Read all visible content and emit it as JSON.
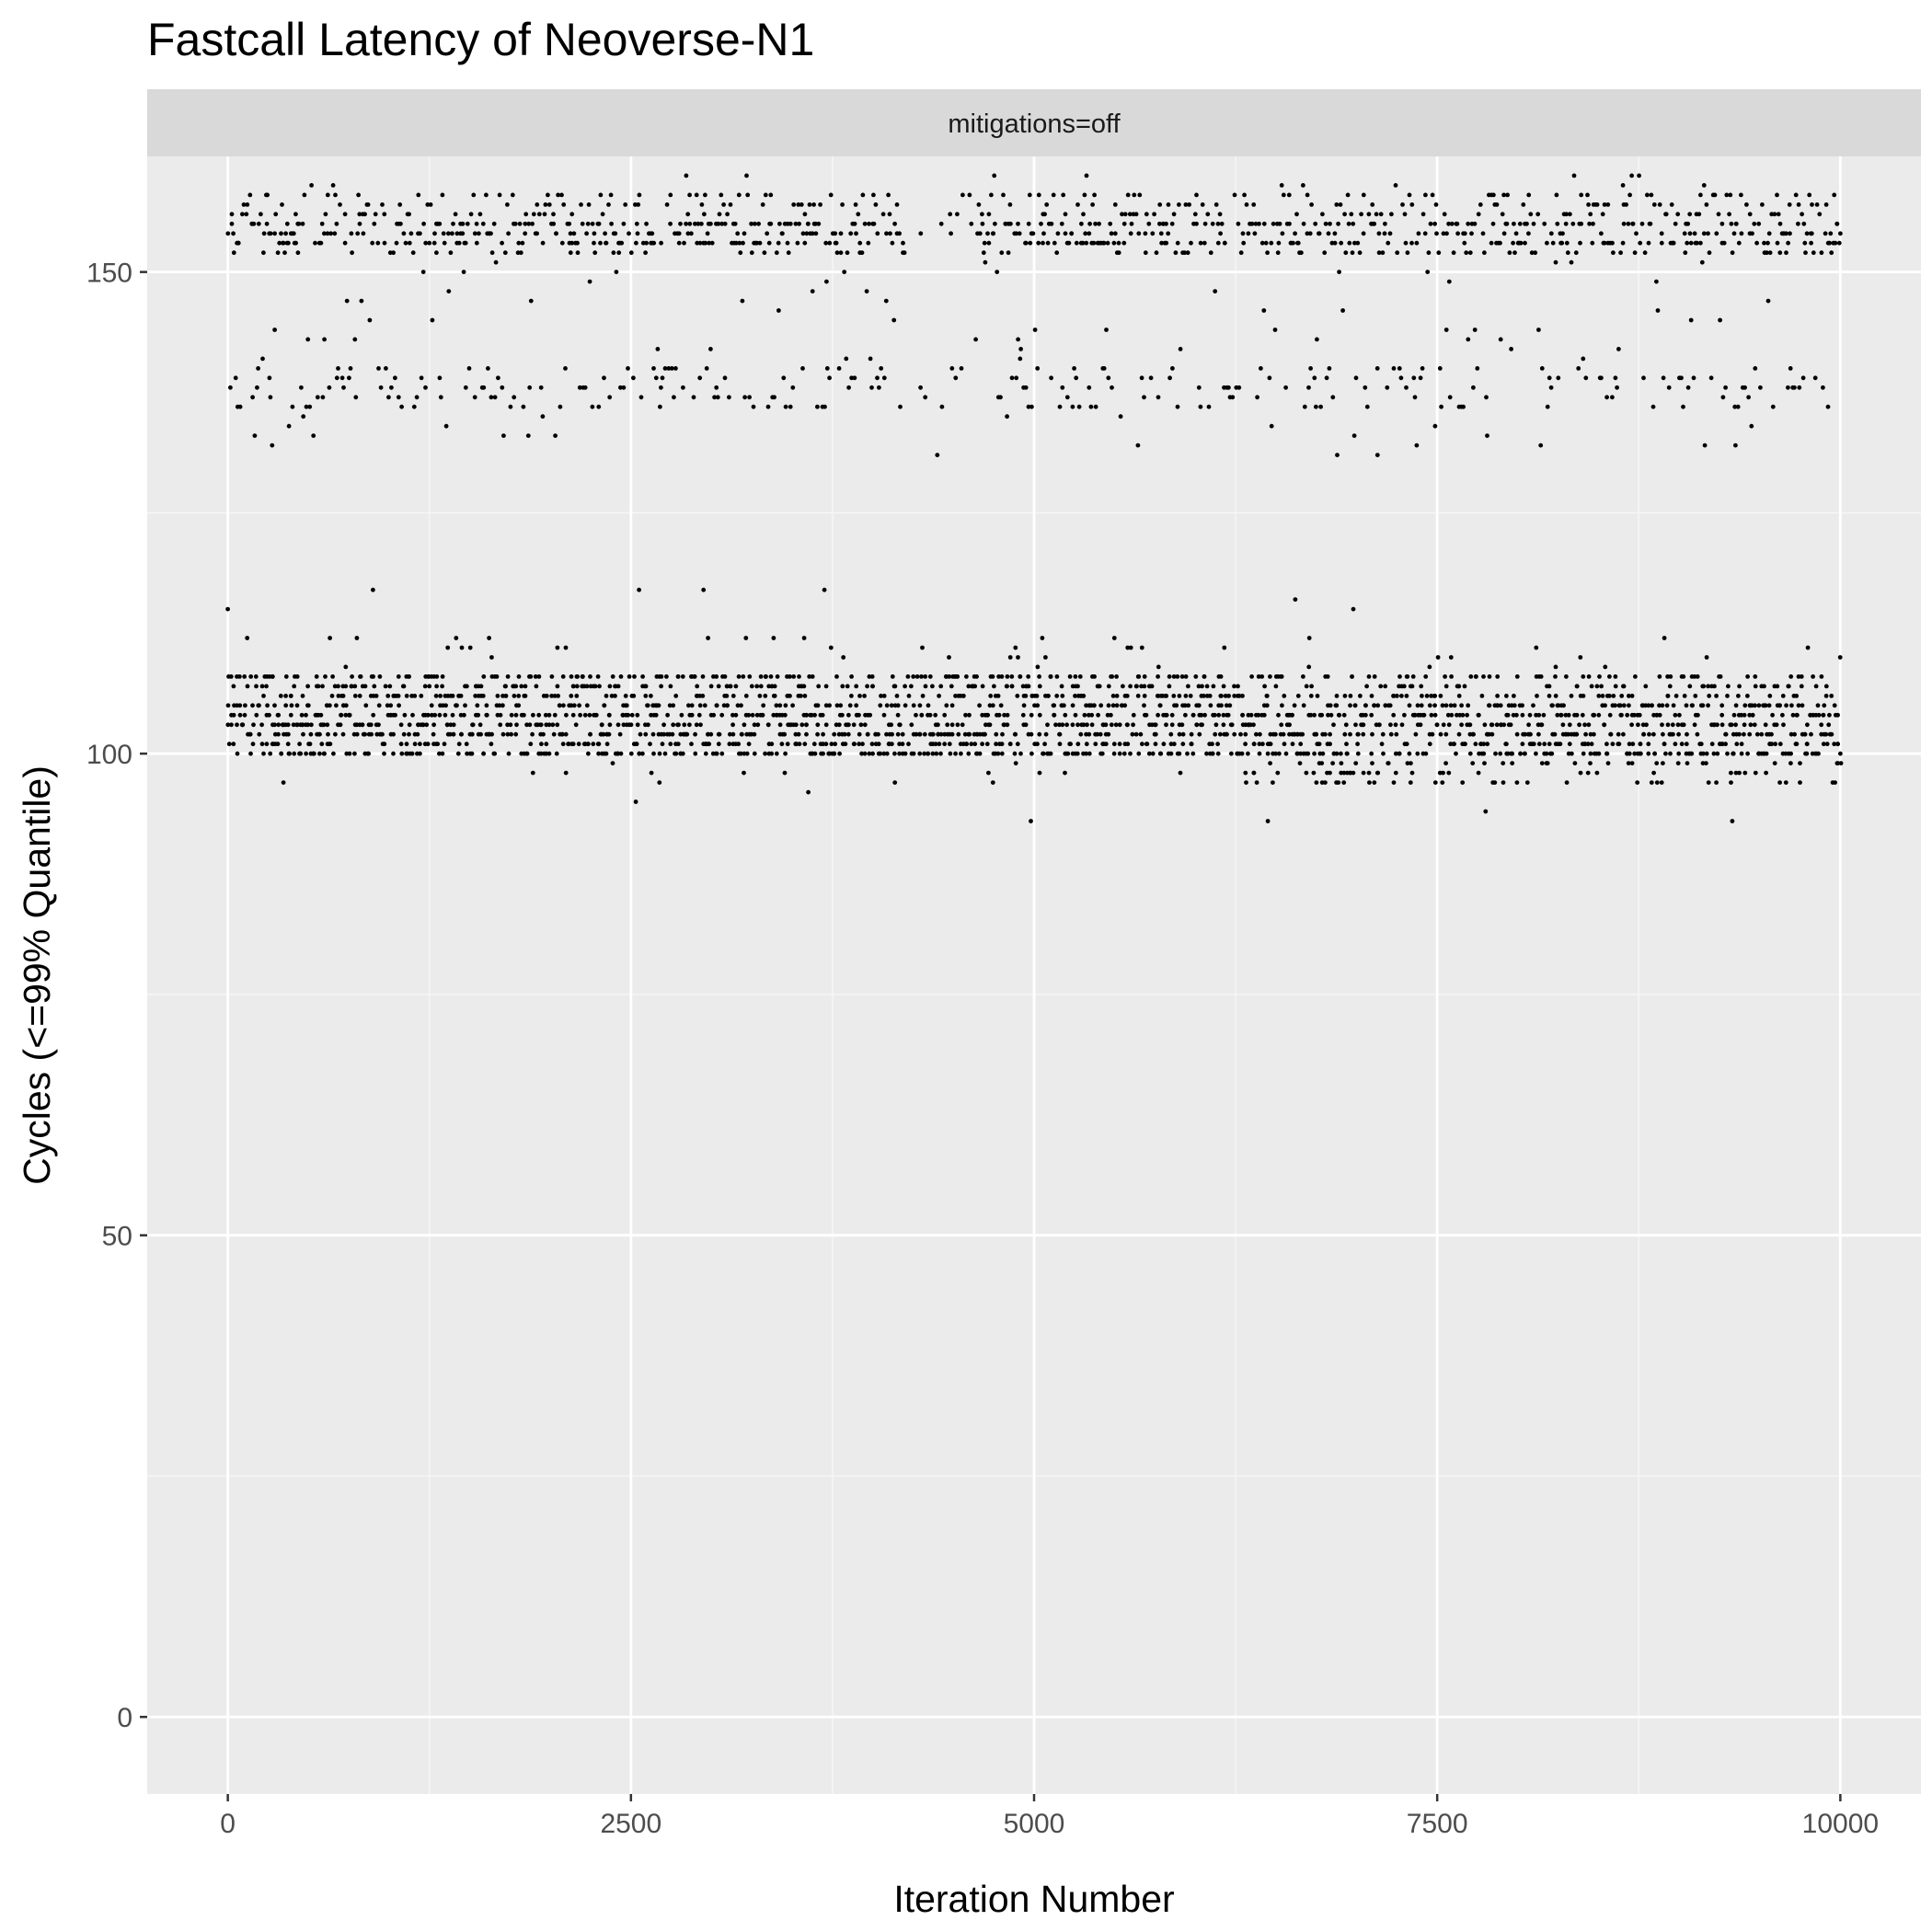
{
  "colors": {
    "panel_background": "#ebebeb",
    "strip_background": "#d9d9d9",
    "grid_major": "#ffffff",
    "grid_minor": "#f7f7f7",
    "points": "#000000",
    "ticks": "#333333"
  },
  "chart_data": {
    "type": "scatter",
    "title": "Fastcall Latency of Neoverse-N1",
    "facet_label": "mitigations=off",
    "xlabel": "Iteration Number",
    "ylabel": "Cycles (<=99% Quantile)",
    "xlim": [
      -500,
      10500
    ],
    "ylim": [
      -8,
      162
    ],
    "x_ticks": [
      0,
      2500,
      5000,
      7500,
      10000
    ],
    "x_tick_labels": [
      "0",
      "2500",
      "5000",
      "7500",
      "10000"
    ],
    "y_ticks": [
      0,
      50,
      100,
      150
    ],
    "y_tick_labels": [
      "0",
      "50",
      "100",
      "150"
    ],
    "grid": true,
    "legend": "none",
    "series": [
      {
        "description": "lower band (main cluster)",
        "x_range": [
          0,
          10000
        ],
        "y_range": [
          97,
          112
        ],
        "typical_y": [
          100,
          101,
          102,
          103,
          104,
          105,
          106,
          107,
          108
        ],
        "outliers": [
          {
            "x": 0,
            "y": 115
          },
          {
            "x": 900,
            "y": 117
          },
          {
            "x": 2550,
            "y": 117
          },
          {
            "x": 2950,
            "y": 117
          },
          {
            "x": 3700,
            "y": 117
          },
          {
            "x": 6620,
            "y": 116
          },
          {
            "x": 6980,
            "y": 115
          },
          {
            "x": 2530,
            "y": 95
          },
          {
            "x": 3600,
            "y": 96
          },
          {
            "x": 4980,
            "y": 93
          },
          {
            "x": 6450,
            "y": 93
          },
          {
            "x": 7800,
            "y": 94
          },
          {
            "x": 9330,
            "y": 93
          }
        ]
      },
      {
        "description": "upper band (elevated latency)",
        "x_range": [
          0,
          10000
        ],
        "y_range": [
          132,
          160
        ],
        "typical_y": [
          136,
          138,
          140,
          142,
          144,
          146,
          148,
          150,
          152,
          153,
          154,
          155,
          156,
          157,
          158
        ],
        "gaps": [
          [
            4200,
            4620
          ]
        ],
        "outliers": [
          {
            "x": 4400,
            "y": 131
          },
          {
            "x": 6880,
            "y": 131
          },
          {
            "x": 7130,
            "y": 131
          },
          {
            "x": 9350,
            "y": 132
          },
          {
            "x": 9160,
            "y": 132
          }
        ]
      }
    ]
  }
}
